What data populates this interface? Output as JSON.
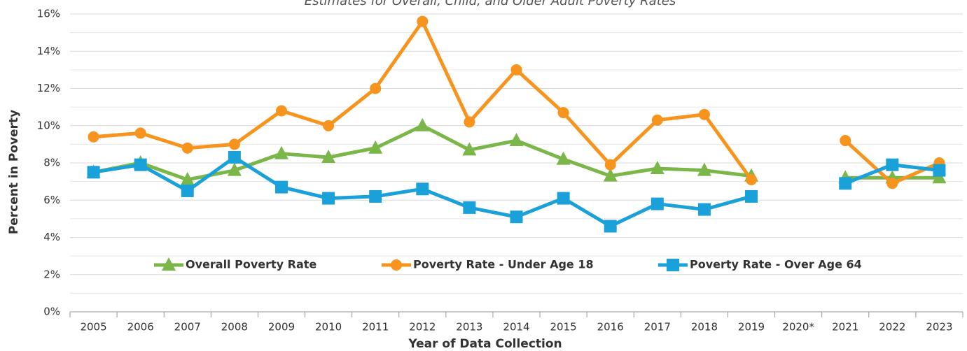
{
  "chart_data": {
    "type": "line",
    "title": "Estimates for Overall, Child, and Older Adult Poverty Rates",
    "xlabel": "Year of Data Collection",
    "ylabel": "Percent in Poverty",
    "categories": [
      "2005",
      "2006",
      "2007",
      "2008",
      "2009",
      "2010",
      "2011",
      "2012",
      "2013",
      "2014",
      "2015",
      "2016",
      "2017",
      "2018",
      "2019",
      "2020*",
      "2021",
      "2022",
      "2023"
    ],
    "series": [
      {
        "name": "Overall Poverty Rate",
        "color": "#7ab648",
        "marker": "triangle",
        "values": [
          7.5,
          8.0,
          7.1,
          7.6,
          8.5,
          8.3,
          8.8,
          10.0,
          8.7,
          9.2,
          8.2,
          7.3,
          7.7,
          7.6,
          7.3,
          null,
          7.2,
          7.2,
          7.2
        ]
      },
      {
        "name": "Poverty Rate - Under Age 18",
        "color": "#f7941d",
        "marker": "circle",
        "values": [
          9.4,
          9.6,
          8.8,
          9.0,
          10.8,
          10.0,
          12.0,
          15.6,
          10.2,
          13.0,
          10.7,
          7.9,
          10.3,
          10.6,
          7.1,
          null,
          9.2,
          6.9,
          8.0
        ]
      },
      {
        "name": "Poverty Rate - Over Age 64",
        "color": "#1ba1d9",
        "marker": "square",
        "values": [
          7.5,
          7.9,
          6.5,
          8.3,
          6.7,
          6.1,
          6.2,
          6.6,
          5.6,
          5.1,
          6.1,
          4.6,
          5.8,
          5.5,
          6.2,
          null,
          6.9,
          7.9,
          7.6
        ]
      }
    ],
    "ylim": [
      0,
      16
    ],
    "yticks": [
      {
        "value": 0,
        "label": "0%"
      },
      {
        "value": 2,
        "label": "2%"
      },
      {
        "value": 4,
        "label": "4%"
      },
      {
        "value": 6,
        "label": "6%"
      },
      {
        "value": 8,
        "label": "8%"
      },
      {
        "value": 10,
        "label": "10%"
      },
      {
        "value": 12,
        "label": "12%"
      },
      {
        "value": 14,
        "label": "14%"
      },
      {
        "value": 16,
        "label": "16%"
      }
    ],
    "grid": true,
    "legend": "lower center"
  }
}
